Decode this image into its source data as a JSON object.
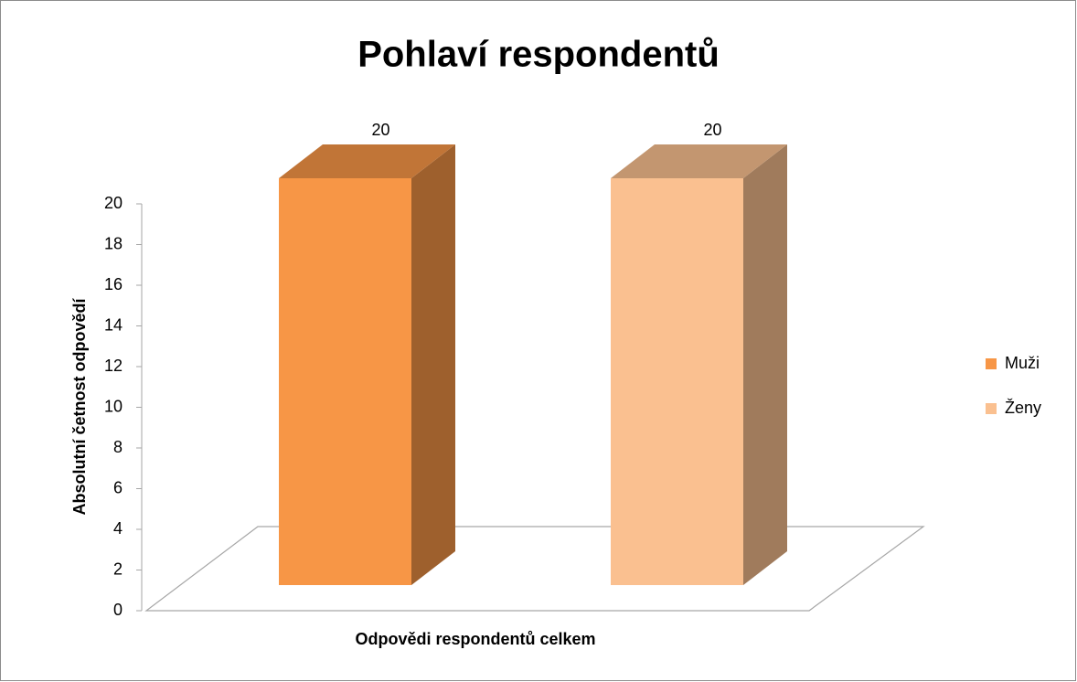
{
  "chart_data": {
    "type": "bar3d",
    "title": "Pohlaví respondentů",
    "y_label": "Absolutní četnost odpovědí",
    "x_label": "Odpovědi respondentů celkem",
    "series": [
      {
        "name": "Muži",
        "color": "#f79646",
        "values": [
          20
        ]
      },
      {
        "name": "Ženy",
        "color": "#fac090",
        "values": [
          20
        ]
      }
    ],
    "ylim": [
      0,
      20
    ],
    "yticks": [
      0,
      2,
      4,
      6,
      8,
      10,
      12,
      14,
      16,
      18,
      20
    ],
    "legend": "right"
  }
}
